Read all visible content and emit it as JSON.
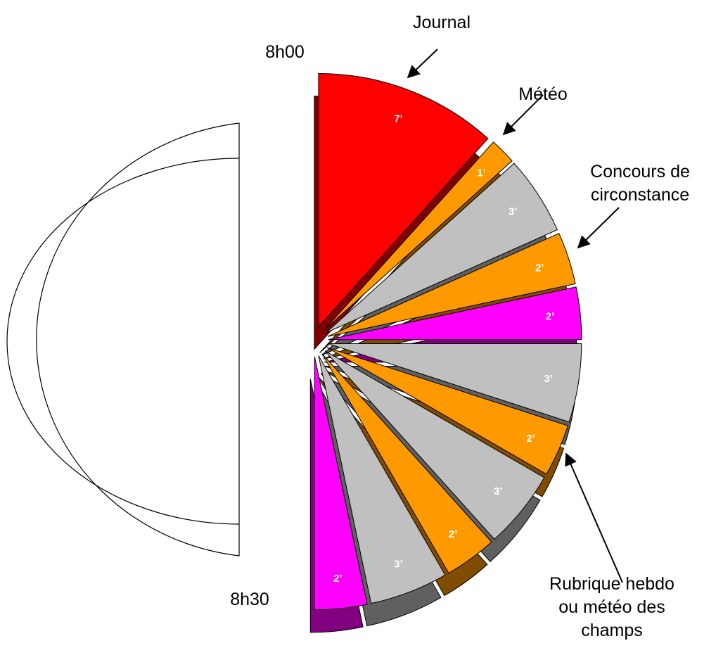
{
  "chart_data": {
    "type": "pie",
    "values": [
      7,
      1,
      3,
      2,
      2,
      3,
      2,
      3,
      2,
      3,
      2
    ],
    "value_labels": [
      "7’",
      "1’",
      "3’",
      "2’",
      "2’",
      "3’",
      "2’",
      "3’",
      "2’",
      "3’",
      "2’"
    ],
    "colors": [
      "#ff0000",
      "#ff9900",
      "#c0c0c0",
      "#ff9900",
      "#ff00ff",
      "#c0c0c0",
      "#ff9900",
      "#c0c0c0",
      "#ff9900",
      "#c0c0c0",
      "#ff00ff"
    ],
    "start_label": "8h00",
    "end_label": "8h30",
    "annotations": [
      {
        "lines": [
          "Journal"
        ]
      },
      {
        "lines": [
          "Météo"
        ]
      },
      {
        "lines": [
          "Concours de",
          "circonstance"
        ]
      },
      {
        "lines": [
          "Rubrique hebdo",
          "ou météo des",
          "champs"
        ]
      }
    ]
  }
}
